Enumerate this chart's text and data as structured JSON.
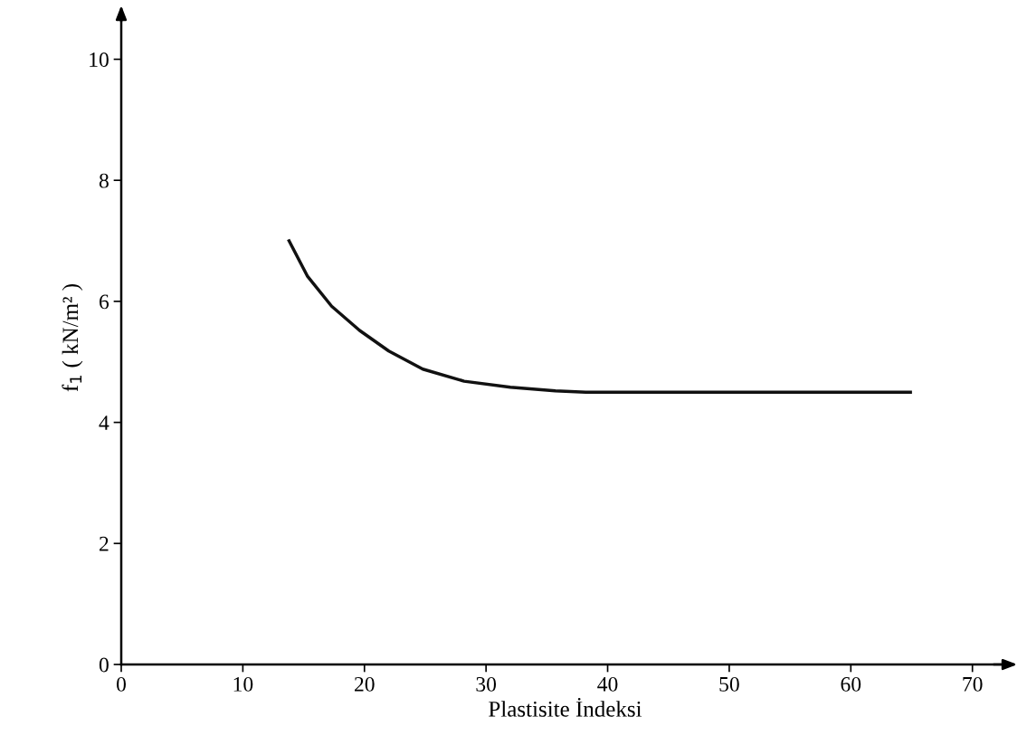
{
  "chart_data": {
    "type": "line",
    "xlabel": "Plastisite İndeksi",
    "ylabel": "f$_{1}$ ( kN/m² )",
    "x": [
      13.8,
      15.3,
      17.3,
      19.6,
      22.0,
      24.8,
      28.2,
      32.0,
      35.7,
      38.2,
      45,
      55,
      64.9
    ],
    "series": [
      {
        "color": "#111111",
        "values": [
          7.0,
          6.42,
          5.92,
          5.52,
          5.18,
          4.88,
          4.68,
          4.58,
          4.52,
          4.5,
          4.5,
          4.5,
          4.5
        ]
      }
    ],
    "xlim": [
      0,
      73
    ],
    "ylim": [
      0,
      10.8
    ],
    "xticks": [
      0,
      10,
      20,
      30,
      40,
      50,
      60,
      70
    ],
    "yticks": [
      0,
      2,
      4,
      6,
      8,
      10
    ],
    "grid": false,
    "legend": false,
    "marker": "none",
    "line_style": "solid"
  }
}
